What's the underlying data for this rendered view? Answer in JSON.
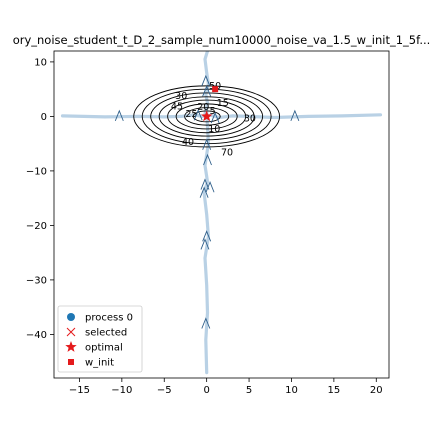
{
  "chart_data": {
    "type": "line",
    "title": "ory_noise_student_t_D_2_sample_num10000_noise_va_1.5_w_init_1_5f...",
    "xlim": [
      -18,
      21.5
    ],
    "ylim": [
      -48,
      12
    ],
    "x_ticks": [
      -15,
      -10,
      -5,
      0,
      5,
      10,
      15,
      20
    ],
    "y_ticks": [
      10,
      0,
      -10,
      -20,
      -30,
      -40
    ],
    "grid": false,
    "legend_position": "lower-left",
    "contours": {
      "center": [
        0,
        0
      ],
      "ellipses": [
        {
          "level": "10",
          "rx": 1.6,
          "ry": 1.0
        },
        {
          "level": "",
          "rx": 2.6,
          "ry": 1.6
        },
        {
          "level": "",
          "rx": 3.6,
          "ry": 2.3
        },
        {
          "level": "",
          "rx": 4.6,
          "ry": 3.0
        },
        {
          "level": "",
          "rx": 5.6,
          "ry": 3.6
        },
        {
          "level": "",
          "rx": 6.6,
          "ry": 4.3
        },
        {
          "level": "",
          "rx": 7.6,
          "ry": 5.0
        },
        {
          "level": "",
          "rx": 8.6,
          "ry": 5.6
        }
      ],
      "labels": [
        {
          "text": "50",
          "x": 1.0,
          "y": 5.6
        },
        {
          "text": "30",
          "x": -3.0,
          "y": 3.7
        },
        {
          "text": "15",
          "x": 1.9,
          "y": 2.5
        },
        {
          "text": "20",
          "x": -0.4,
          "y": 1.7
        },
        {
          "text": "5",
          "x": 0.7,
          "y": 1.0
        },
        {
          "text": "45",
          "x": -3.5,
          "y": 1.8
        },
        {
          "text": "25",
          "x": -1.8,
          "y": 0.4
        },
        {
          "text": "10",
          "x": 0.9,
          "y": -2.3
        },
        {
          "text": "30",
          "x": 5.1,
          "y": -0.4
        },
        {
          "text": "40",
          "x": -2.2,
          "y": -4.7
        },
        {
          "text": "70",
          "x": 2.4,
          "y": -6.6
        }
      ]
    },
    "series": [
      {
        "name": "process 0",
        "color": "#b5cfe4",
        "x": [
          -17,
          -12,
          -8,
          -5,
          -3,
          -1.5,
          -0.5,
          0,
          0.5,
          1.5,
          3,
          5,
          8,
          12,
          16,
          20.5
        ],
        "y": [
          0.1,
          -0.1,
          0.0,
          -0.1,
          0.0,
          0.3,
          0.0,
          0.1,
          0.2,
          -0.2,
          0.1,
          0.0,
          -0.2,
          0.0,
          0.1,
          0.3
        ]
      },
      {
        "name": "",
        "color": "#b5cfe4",
        "x": [
          0,
          0.2,
          -0.2,
          0.1,
          -0.3,
          0.0,
          0.2,
          -0.2,
          0.0,
          0.1,
          -0.1,
          0.0
        ],
        "y": [
          1.0,
          -5,
          -9,
          -12,
          -14,
          -18,
          -22,
          -26,
          -31,
          -36,
          -41,
          -47
        ]
      },
      {
        "name": "",
        "color": "#b5cfe4",
        "x": [
          -0.2,
          0.1,
          -0.1,
          0.2,
          0.0,
          -0.2,
          0.1
        ],
        "y": [
          0.5,
          2.5,
          4.0,
          6.0,
          8.0,
          10.5,
          12
        ]
      }
    ],
    "selected_points": [
      [
        -10.3,
        0.1
      ],
      [
        10.4,
        0.1
      ],
      [
        -0.1,
        6.5
      ],
      [
        0.0,
        4.6
      ],
      [
        0.0,
        -5.2
      ],
      [
        0.1,
        -8.0
      ],
      [
        -0.2,
        -12.5
      ],
      [
        0.4,
        -13.0
      ],
      [
        -0.3,
        -14.0
      ],
      [
        0.0,
        -22.0
      ],
      [
        -0.2,
        -23.5
      ],
      [
        -0.1,
        -38.0
      ],
      [
        -1.0,
        0.2
      ],
      [
        1.0,
        -0.3
      ]
    ],
    "optimal": [
      0.0,
      0.0
    ],
    "w_init": [
      1.0,
      5.0
    ],
    "legend": [
      {
        "label": "process 0",
        "marker": "circle",
        "color": "#1f77b4"
      },
      {
        "label": "selected",
        "marker": "x",
        "color": "#e41a1c"
      },
      {
        "label": "optimal",
        "marker": "star",
        "color": "#e41a1c"
      },
      {
        "label": "w_init",
        "marker": "square",
        "color": "#e41a1c"
      }
    ]
  }
}
